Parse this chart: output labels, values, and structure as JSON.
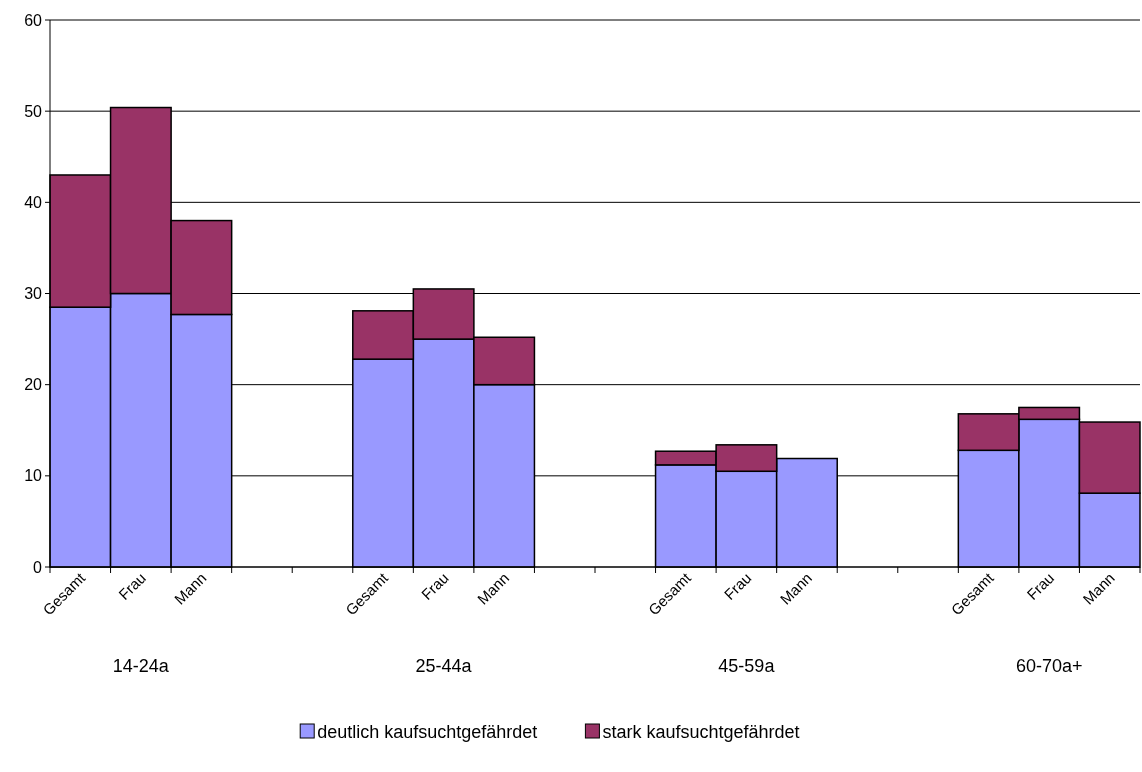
{
  "chart_data": {
    "type": "bar",
    "stacked": true,
    "categories": [
      "Gesamt",
      "Frau",
      "Mann",
      null,
      null,
      "Gesamt",
      "Frau",
      "Mann",
      null,
      null,
      "Gesamt",
      "Frau",
      "Mann",
      null,
      null,
      "Gesamt",
      "Frau",
      "Mann"
    ],
    "series": [
      {
        "name": "deutlich kaufsuchtgefährdet",
        "color": "#9999ff",
        "values": [
          28.5,
          30,
          27.7,
          null,
          null,
          22.8,
          25,
          20,
          null,
          null,
          11.2,
          10.5,
          11.9,
          null,
          null,
          12.8,
          16.2,
          8.1
        ]
      },
      {
        "name": "stark kaufsuchtgefährdet",
        "color": "#993366",
        "values": [
          14.5,
          20.4,
          10.3,
          null,
          null,
          5.3,
          5.5,
          5.2,
          null,
          null,
          1.5,
          2.9,
          null,
          null,
          null,
          4,
          1.3,
          7.8
        ]
      }
    ],
    "annotations": [
      "14-24a",
      "25-44a",
      "45-59a",
      "60-70a+"
    ],
    "ylim": [
      0,
      60
    ],
    "yticks": [
      0,
      10,
      20,
      30,
      40,
      50,
      60
    ],
    "grid": "y",
    "legend": "bottom"
  }
}
